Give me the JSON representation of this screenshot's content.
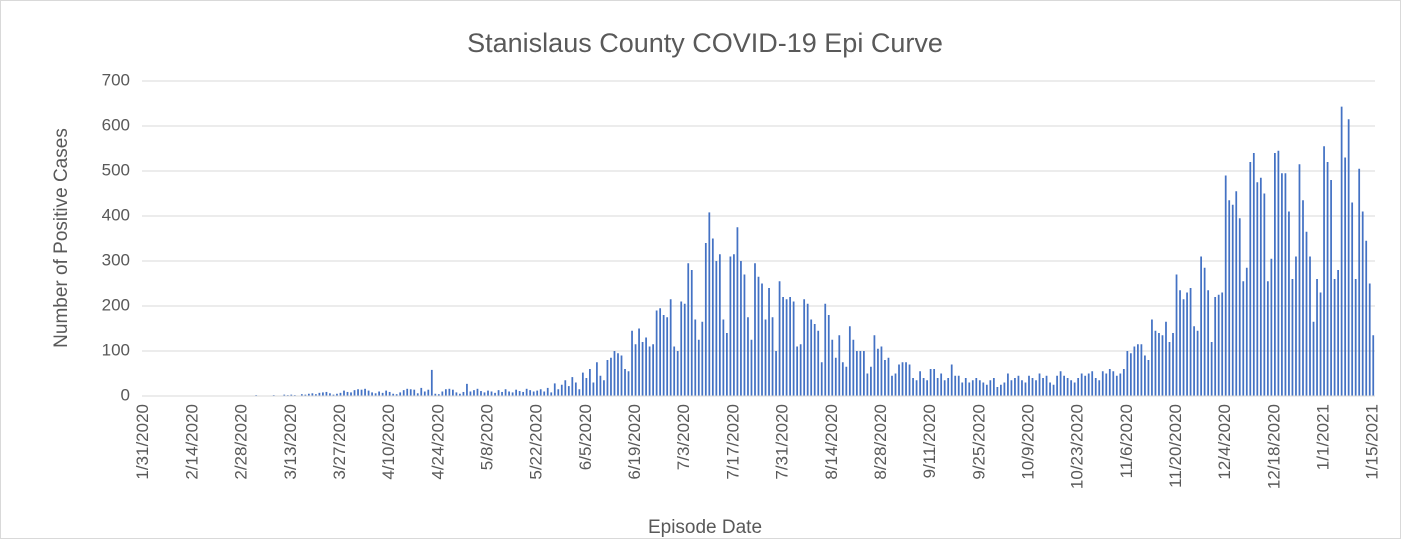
{
  "chart_data": {
    "type": "bar",
    "title": "Stanislaus County COVID-19 Epi Curve",
    "x_label": "Episode Date",
    "y_label": "Number of Positive Cases",
    "color": "#4472c4",
    "grid": true,
    "ylim": [
      0,
      700
    ],
    "yticks": [
      0,
      100,
      200,
      300,
      400,
      500,
      600,
      700
    ],
    "categories": [
      "1/31/2020",
      null,
      null,
      null,
      null,
      null,
      null,
      null,
      null,
      null,
      null,
      null,
      null,
      null,
      "2/14/2020",
      null,
      null,
      null,
      null,
      null,
      null,
      null,
      null,
      null,
      null,
      null,
      null,
      null,
      "2/28/2020",
      null,
      null,
      null,
      null,
      null,
      null,
      null,
      null,
      null,
      null,
      null,
      null,
      null,
      "3/13/2020",
      null,
      null,
      null,
      null,
      null,
      null,
      null,
      null,
      null,
      null,
      null,
      null,
      null,
      "3/27/2020",
      null,
      null,
      null,
      null,
      null,
      null,
      null,
      null,
      null,
      null,
      null,
      null,
      null,
      "4/10/2020",
      null,
      null,
      null,
      null,
      null,
      null,
      null,
      null,
      null,
      null,
      null,
      null,
      null,
      "4/24/2020",
      null,
      null,
      null,
      null,
      null,
      null,
      null,
      null,
      null,
      null,
      null,
      null,
      null,
      "5/8/2020",
      null,
      null,
      null,
      null,
      null,
      null,
      null,
      null,
      null,
      null,
      null,
      null,
      null,
      "5/22/2020",
      null,
      null,
      null,
      null,
      null,
      null,
      null,
      null,
      null,
      null,
      null,
      null,
      null,
      "6/5/2020",
      null,
      null,
      null,
      null,
      null,
      null,
      null,
      null,
      null,
      null,
      null,
      null,
      null,
      "6/19/2020",
      null,
      null,
      null,
      null,
      null,
      null,
      null,
      null,
      null,
      null,
      null,
      null,
      null,
      "7/3/2020",
      null,
      null,
      null,
      null,
      null,
      null,
      null,
      null,
      null,
      null,
      null,
      null,
      null,
      "7/17/2020",
      null,
      null,
      null,
      null,
      null,
      null,
      null,
      null,
      null,
      null,
      null,
      null,
      null,
      "7/31/2020",
      null,
      null,
      null,
      null,
      null,
      null,
      null,
      null,
      null,
      null,
      null,
      null,
      null,
      "8/14/2020",
      null,
      null,
      null,
      null,
      null,
      null,
      null,
      null,
      null,
      null,
      null,
      null,
      null,
      "8/28/2020",
      null,
      null,
      null,
      null,
      null,
      null,
      null,
      null,
      null,
      null,
      null,
      null,
      null,
      "9/11/2020",
      null,
      null,
      null,
      null,
      null,
      null,
      null,
      null,
      null,
      null,
      null,
      null,
      null,
      "9/25/2020",
      null,
      null,
      null,
      null,
      null,
      null,
      null,
      null,
      null,
      null,
      null,
      null,
      null,
      "10/9/2020",
      null,
      null,
      null,
      null,
      null,
      null,
      null,
      null,
      null,
      null,
      null,
      null,
      null,
      "10/23/2020",
      null,
      null,
      null,
      null,
      null,
      null,
      null,
      null,
      null,
      null,
      null,
      null,
      null,
      "11/6/2020",
      null,
      null,
      null,
      null,
      null,
      null,
      null,
      null,
      null,
      null,
      null,
      null,
      null,
      "11/20/2020",
      null,
      null,
      null,
      null,
      null,
      null,
      null,
      null,
      null,
      null,
      null,
      null,
      null,
      "12/4/2020",
      null,
      null,
      null,
      null,
      null,
      null,
      null,
      null,
      null,
      null,
      null,
      null,
      null,
      "12/18/2020",
      null,
      null,
      null,
      null,
      null,
      null,
      null,
      null,
      null,
      null,
      null,
      null,
      null,
      "1/1/2021",
      null,
      null,
      null,
      null,
      null,
      null,
      null,
      null,
      null,
      null,
      null,
      null,
      null,
      "1/15/2021"
    ],
    "values": [
      0,
      0,
      0,
      0,
      0,
      0,
      0,
      0,
      0,
      0,
      0,
      0,
      0,
      0,
      0,
      0,
      0,
      0,
      0,
      0,
      0,
      0,
      0,
      0,
      0,
      0,
      0,
      0,
      0,
      1,
      0,
      0,
      2,
      1,
      0,
      1,
      0,
      2,
      1,
      0,
      3,
      2,
      3,
      2,
      1,
      4,
      3,
      5,
      6,
      4,
      7,
      8,
      9,
      6,
      3,
      5,
      7,
      12,
      9,
      8,
      13,
      15,
      14,
      16,
      12,
      8,
      6,
      10,
      7,
      12,
      9,
      5,
      4,
      8,
      13,
      16,
      15,
      14,
      6,
      18,
      10,
      14,
      58,
      5,
      4,
      10,
      15,
      16,
      14,
      8,
      5,
      9,
      27,
      10,
      13,
      16,
      11,
      8,
      12,
      10,
      7,
      13,
      9,
      15,
      10,
      8,
      14,
      11,
      9,
      16,
      13,
      10,
      12,
      15,
      10,
      18,
      8,
      28,
      15,
      25,
      35,
      22,
      42,
      30,
      15,
      52,
      40,
      60,
      30,
      75,
      45,
      35,
      80,
      85,
      100,
      95,
      90,
      60,
      55,
      145,
      115,
      150,
      120,
      130,
      110,
      115,
      190,
      195,
      180,
      175,
      215,
      110,
      100,
      210,
      205,
      295,
      280,
      170,
      125,
      165,
      340,
      408,
      350,
      300,
      315,
      170,
      140,
      310,
      315,
      375,
      300,
      270,
      175,
      125,
      295,
      265,
      250,
      170,
      240,
      175,
      100,
      255,
      220,
      215,
      220,
      210,
      110,
      115,
      215,
      205,
      170,
      160,
      145,
      75,
      205,
      180,
      125,
      85,
      135,
      75,
      65,
      155,
      125,
      100,
      100,
      100,
      50,
      65,
      135,
      105,
      110,
      80,
      85,
      45,
      50,
      70,
      75,
      75,
      70,
      40,
      35,
      55,
      40,
      35,
      60,
      60,
      40,
      50,
      35,
      40,
      70,
      45,
      45,
      30,
      40,
      30,
      35,
      40,
      35,
      30,
      25,
      35,
      40,
      20,
      25,
      30,
      50,
      35,
      40,
      45,
      35,
      30,
      45,
      40,
      35,
      50,
      40,
      45,
      30,
      25,
      45,
      55,
      45,
      40,
      35,
      30,
      40,
      50,
      45,
      50,
      55,
      40,
      35,
      55,
      50,
      60,
      55,
      45,
      50,
      60,
      100,
      95,
      110,
      115,
      115,
      90,
      80,
      170,
      145,
      140,
      135,
      165,
      120,
      140,
      270,
      235,
      215,
      230,
      240,
      155,
      145,
      310,
      285,
      235,
      120,
      220,
      225,
      230,
      490,
      435,
      425,
      455,
      395,
      255,
      285,
      520,
      540,
      475,
      485,
      450,
      255,
      305,
      540,
      545,
      495,
      495,
      410,
      260,
      310,
      515,
      435,
      365,
      310,
      165,
      260,
      230,
      555,
      520,
      480,
      260,
      280,
      643,
      530,
      615,
      430,
      260,
      505,
      410,
      345,
      250,
      135
    ]
  }
}
